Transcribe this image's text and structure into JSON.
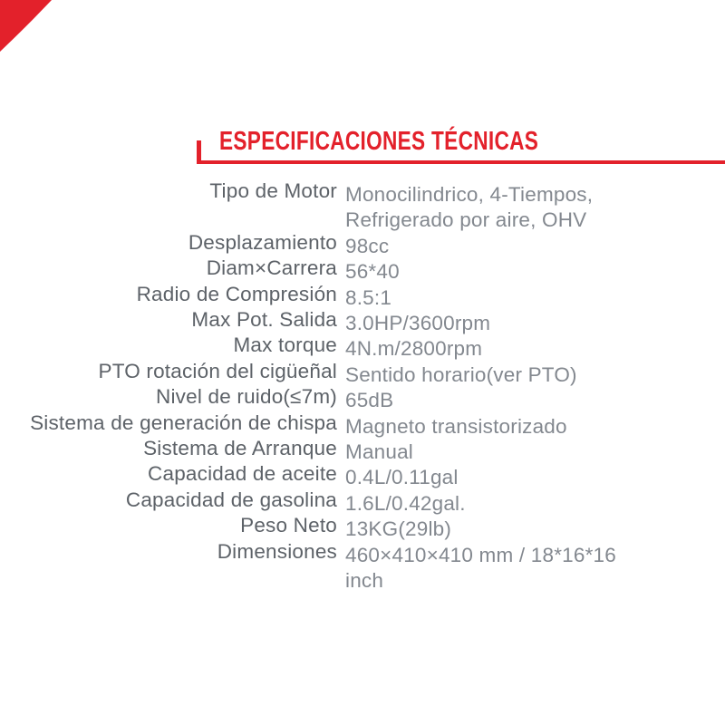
{
  "colors": {
    "accent": "#e3212b",
    "label": "#5d6268",
    "value": "#83888f"
  },
  "decor": {
    "corner_icon": "red-corner-triangle"
  },
  "header": {
    "title": "ESPECIFICACIONES TÉCNICAS"
  },
  "specs": {
    "rows": [
      {
        "label": "Tipo de Motor",
        "value": "Monocilindrico, 4-Tiempos,\nRefrigerado por aire, OHV"
      },
      {
        "label": "Desplazamiento",
        "value": "98cc"
      },
      {
        "label": "Diam×Carrera",
        "value": "56*40"
      },
      {
        "label": "Radio de Compresión",
        "value": "8.5:1"
      },
      {
        "label": "Max Pot. Salida",
        "value": "3.0HP/3600rpm"
      },
      {
        "label": "Max torque",
        "value": "4N.m/2800rpm"
      },
      {
        "label": "PTO rotación del cigüeñal",
        "value": "Sentido horario(ver PTO)"
      },
      {
        "label": "Nivel de ruido(≤7m)",
        "value": "65dB"
      },
      {
        "label": "Sistema de generación de chispa",
        "value": "Magneto transistorizado"
      },
      {
        "label": "Sistema de Arranque",
        "value": "Manual"
      },
      {
        "label": "Capacidad de aceite",
        "value": "0.4L/0.11gal"
      },
      {
        "label": "Capacidad de gasolina",
        "value": "1.6L/0.42gal."
      },
      {
        "label": "Peso Neto",
        "value": "13KG(29lb)"
      },
      {
        "label": "Dimensiones",
        "value": "460×410×410 mm / 18*16*16\ninch"
      }
    ]
  }
}
